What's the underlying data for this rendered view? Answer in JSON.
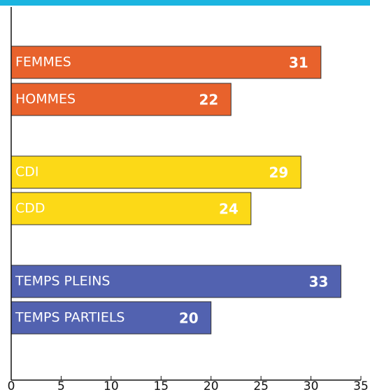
{
  "chart_data": {
    "type": "bar",
    "orientation": "horizontal",
    "categories": [
      "FEMMES",
      "HOMMES",
      "CDI",
      "CDD",
      "TEMPS PLEINS",
      "TEMPS PARTIELS"
    ],
    "values": [
      31,
      22,
      29,
      24,
      33,
      20
    ],
    "colors": [
      "#e8622c",
      "#e8622c",
      "#fcd917",
      "#fcd917",
      "#5262b0",
      "#5262b0"
    ],
    "xlim": [
      0,
      35
    ],
    "xticks": [
      0,
      5,
      10,
      15,
      20,
      25,
      30,
      35
    ],
    "grid": false
  }
}
